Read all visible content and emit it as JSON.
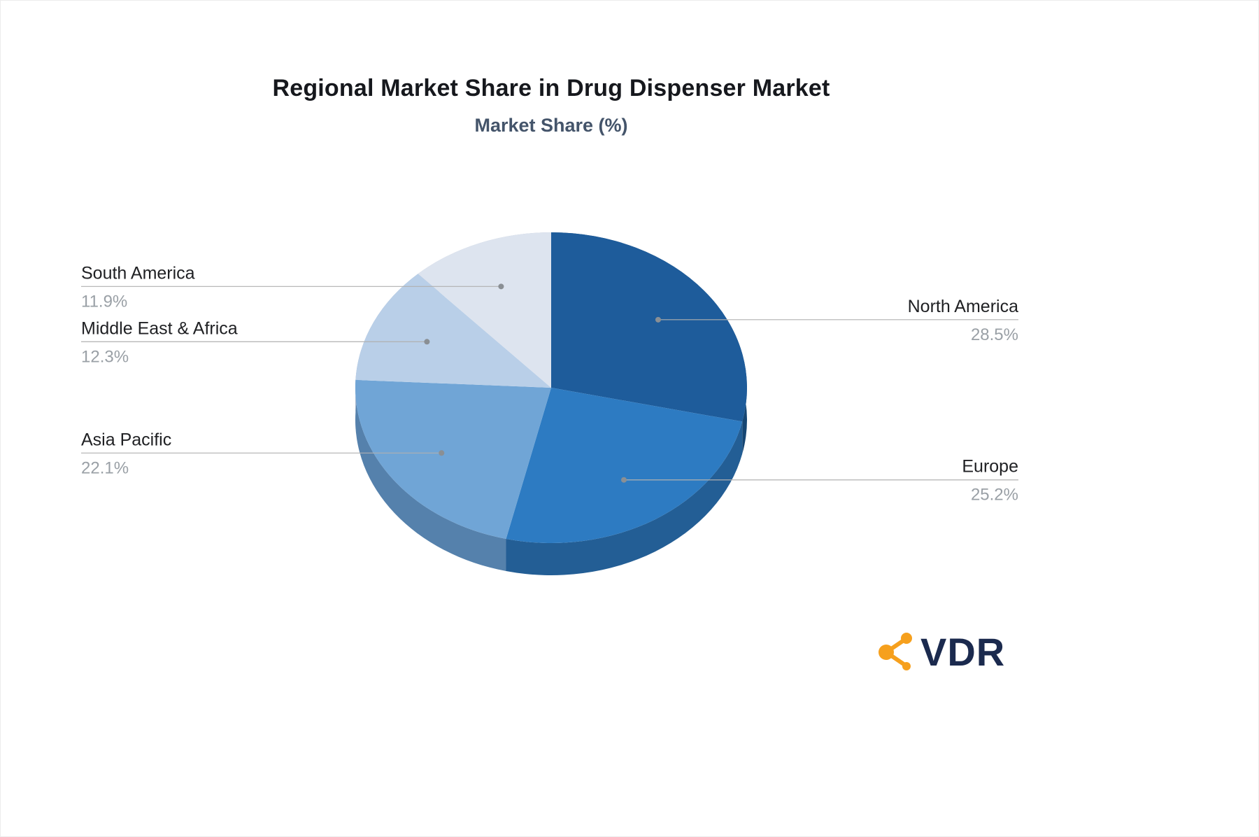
{
  "chart_data": {
    "type": "pie",
    "title": "Regional Market Share in Drug Dispenser Market",
    "subtitle": "Market Share (%)",
    "unit": "%",
    "categories": [
      "North America",
      "Europe",
      "Asia Pacific",
      "Middle East & Africa",
      "South America"
    ],
    "values": [
      28.5,
      25.2,
      22.1,
      12.3,
      11.9
    ],
    "value_labels": [
      "28.5%",
      "25.2%",
      "22.1%",
      "12.3%",
      "11.9%"
    ],
    "colors": [
      "#1e5c9b",
      "#2d7bc2",
      "#70a5d6",
      "#b9cfe8",
      "#dde4ef"
    ],
    "side_colors": [
      "#164673",
      "#235e95",
      "#5581ac",
      "#93a8c3",
      "#b4bdcb"
    ],
    "style": "3d-pie",
    "start_angle_deg": -90,
    "direction": "clockwise",
    "legend_position": "none",
    "labels": "category name with leader line and percent value",
    "label_color": "#202124",
    "value_color": "#9aa0a6",
    "leader_line_color": "#b0b0b0"
  },
  "branding": {
    "logo_text": "VDR",
    "logo_text_color": "#1b2a4e",
    "logo_icon": "share-network-icon",
    "logo_icon_color": "#f6a01d"
  }
}
